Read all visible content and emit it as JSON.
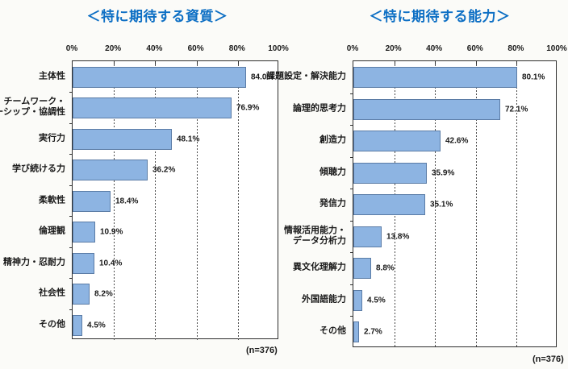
{
  "figure": {
    "background": "#fbfbf8",
    "n_note": "(n=376)"
  },
  "colors": {
    "title_blue": "#0d6fc4",
    "bar_fill": "#8db4e2",
    "bar_border": "#5b7ca6",
    "gridline": "#4a4a4a",
    "plot_border": "#2e2e2e",
    "text": "#1a1a1a"
  },
  "chart_data": [
    {
      "type": "bar",
      "orientation": "horizontal",
      "title": "＜特に期待する資質＞",
      "n_label": "(n=376)",
      "xlim": [
        0,
        100
      ],
      "x_ticks": [
        "0%",
        "20%",
        "40%",
        "60%",
        "80%",
        "100%"
      ],
      "grid": "dashed-vertical-at-20-40-60-80",
      "categories": [
        "主体性",
        "チームワーク・\nリーダーシップ・協調性",
        "実行力",
        "学び続ける力",
        "柔軟性",
        "倫理観",
        "精神力・忍耐力",
        "社会性",
        "その他"
      ],
      "values": [
        84.0,
        76.9,
        48.1,
        36.2,
        18.4,
        10.9,
        10.4,
        8.2,
        4.5
      ],
      "value_labels": [
        "84.0%",
        "76.9%",
        "48.1%",
        "36.2%",
        "18.4%",
        "10.9%",
        "10.4%",
        "8.2%",
        "4.5%"
      ]
    },
    {
      "type": "bar",
      "orientation": "horizontal",
      "title": "＜特に期待する能力＞",
      "n_label": "(n=376)",
      "xlim": [
        0,
        100
      ],
      "x_ticks": [
        "0%",
        "20%",
        "40%",
        "60%",
        "80%",
        "100%"
      ],
      "grid": "dashed-vertical-at-20-40-60-80",
      "categories": [
        "課題設定・解決能力",
        "論理的思考力",
        "創造力",
        "傾聴力",
        "発信力",
        "情報活用能力・\nデータ分析力",
        "異文化理解力",
        "外国語能力",
        "その他"
      ],
      "values": [
        80.1,
        72.1,
        42.6,
        35.9,
        35.1,
        13.8,
        8.8,
        4.5,
        2.7
      ],
      "value_labels": [
        "80.1%",
        "72.1%",
        "42.6%",
        "35.9%",
        "35.1%",
        "13.8%",
        "8.8%",
        "4.5%",
        "2.7%"
      ]
    }
  ]
}
